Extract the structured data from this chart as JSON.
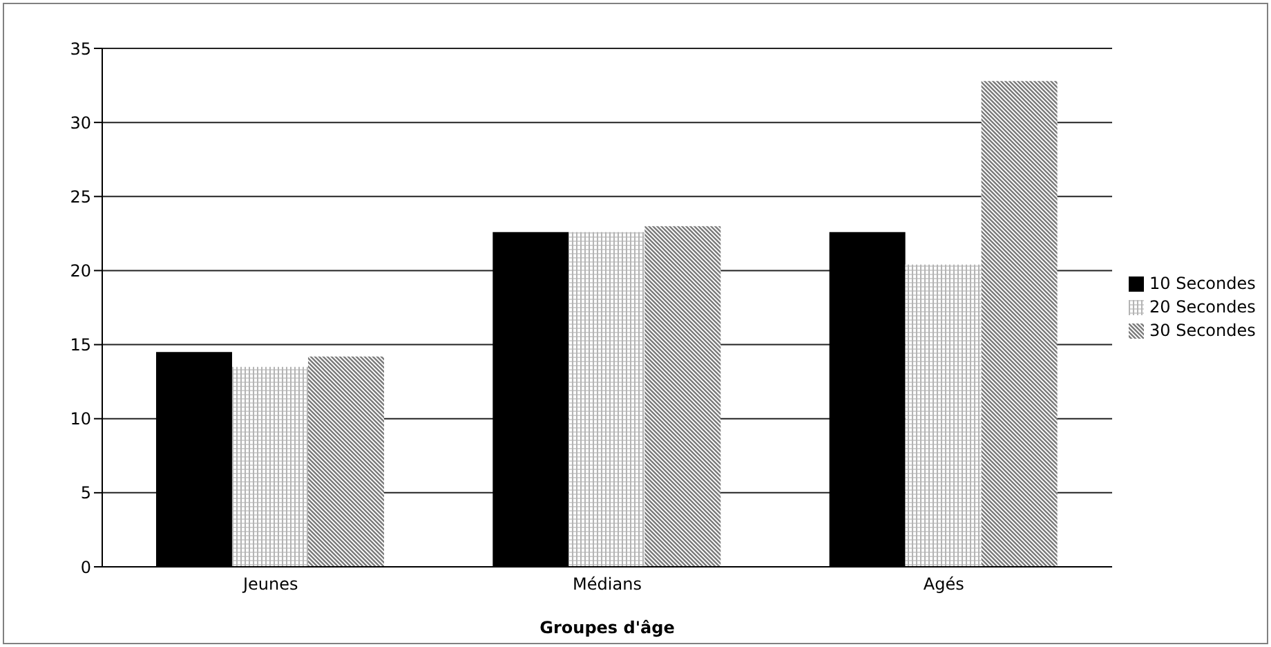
{
  "chart_data": {
    "type": "bar",
    "xlabel": "Groupes d'âge",
    "categories": [
      "Jeunes",
      "Médians",
      "Agés"
    ],
    "series": [
      {
        "name": "10 Secondes",
        "color": "#000000",
        "values": [
          14.5,
          22.6,
          22.6
        ]
      },
      {
        "name": "20 Secondes",
        "color": "#b4b4b4",
        "values": [
          13.5,
          22.6,
          20.4
        ]
      },
      {
        "name": "30 Secondes",
        "color": "#7a7a7a",
        "values": [
          14.2,
          23.0,
          32.8
        ]
      }
    ],
    "ylim": [
      0,
      35
    ],
    "yticks": [
      0,
      5,
      10,
      15,
      20,
      25,
      30,
      35
    ],
    "grid": "y",
    "legend": "right"
  }
}
